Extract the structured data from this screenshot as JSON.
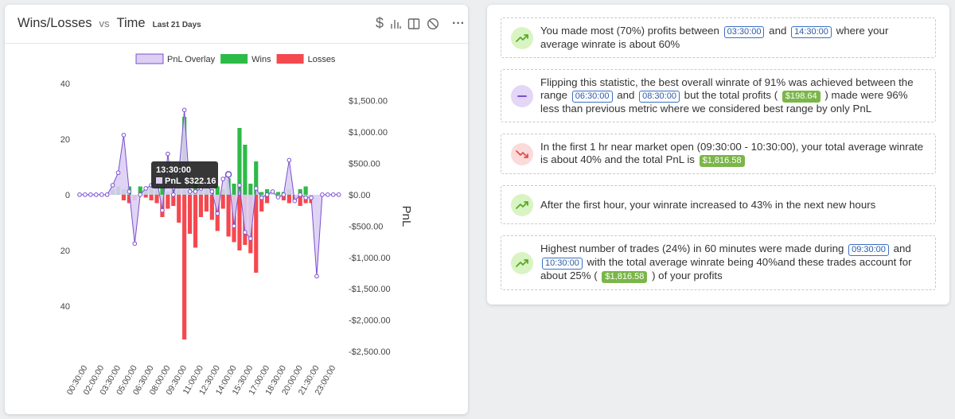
{
  "header": {
    "title": "Wins/Losses",
    "vs": "vs",
    "axis_title": "Time",
    "period": "Last 21 Days",
    "currency_icon": "$",
    "menu": "···"
  },
  "chart_data": {
    "type": "mixed",
    "categories": [
      null,
      "00:30:00",
      null,
      null,
      "02:00:00",
      null,
      null,
      "03:30:00",
      null,
      null,
      "05:00:00",
      null,
      null,
      "06:30:00",
      null,
      null,
      "08:00:00",
      null,
      null,
      "09:30:00",
      null,
      null,
      "11:00:00",
      null,
      null,
      "12:30:00",
      null,
      null,
      "14:00:00",
      null,
      null,
      "15:30:00",
      null,
      null,
      "17:00:00",
      null,
      null,
      "18:30:00",
      null,
      null,
      "20:00:00",
      null,
      null,
      "21:30:00",
      null,
      null,
      "23:00:00",
      null
    ],
    "series": [
      {
        "name": "PnL Overlay",
        "type": "area",
        "axis": "y2",
        "color": "#7b4fd0",
        "fill": "#dccff3",
        "values": [
          0,
          0,
          0,
          0,
          0,
          0,
          150,
          350,
          950,
          50,
          -780,
          0,
          100,
          150,
          250,
          -250,
          650,
          0,
          350,
          1350,
          50,
          50,
          100,
          150,
          50,
          -300,
          250,
          322.16,
          -500,
          150,
          -600,
          -700,
          100,
          -50,
          0,
          50,
          -40,
          0,
          550,
          -100,
          0,
          -50,
          -50,
          -1300,
          0,
          0,
          0,
          0
        ]
      },
      {
        "name": "Wins",
        "type": "bar",
        "color": "#2dbb47",
        "values": [
          0,
          0,
          0,
          0,
          0,
          0,
          2,
          3,
          2,
          3,
          0,
          3,
          2,
          3,
          3,
          3,
          1,
          2,
          3,
          28,
          2,
          5,
          2,
          3,
          2,
          3,
          2,
          6,
          4,
          24,
          18,
          4,
          12,
          1,
          2,
          0,
          1,
          1,
          2,
          0,
          2,
          3,
          0,
          0,
          0,
          0,
          0,
          0
        ]
      },
      {
        "name": "Losses",
        "type": "bar",
        "color": "#f5484f",
        "values": [
          0,
          0,
          0,
          0,
          0,
          0,
          0,
          0,
          -2,
          -3,
          -2,
          0,
          -1,
          -2,
          -3,
          -8,
          -5,
          -4,
          -10,
          -52,
          -14,
          -19,
          -8,
          -6,
          -9,
          -13,
          -5,
          -15,
          -17,
          -20,
          -18,
          -21,
          -28,
          -6,
          -3,
          0,
          -1,
          -2,
          -3,
          -2,
          -4,
          -3,
          -3,
          0,
          0,
          0,
          0,
          0
        ]
      }
    ],
    "ylim": [
      -57,
      43
    ],
    "yticks": [
      40,
      20,
      0,
      {
        "value": -20,
        "label": "20"
      },
      {
        "value": -40,
        "label": "40"
      }
    ],
    "y2lim": [
      -2530,
      1905
    ],
    "y2ticks": [
      {
        "value": 1500,
        "label": "$1,500.00"
      },
      {
        "value": 1000,
        "label": "$1,000.00"
      },
      {
        "value": 500,
        "label": "$500.00"
      },
      {
        "value": 0,
        "label": "$0.00"
      },
      {
        "value": -500,
        "label": "-$500.00"
      },
      {
        "value": -1000,
        "label": "-$1,000.00"
      },
      {
        "value": -1500,
        "label": "-$1,500.00"
      },
      {
        "value": -2000,
        "label": "-$2,000.00"
      },
      {
        "value": -2500,
        "label": "-$2,500.00"
      }
    ],
    "y2label": "PnL",
    "grid": false,
    "legend": "top",
    "tooltip": {
      "index": 27,
      "time": "13:30:00",
      "label": "PnL",
      "value": 322.16,
      "value_label": "$322.16"
    }
  },
  "insights": [
    {
      "icon": "up",
      "parts": [
        "You made most (70%) profits between",
        {
          "text": "03:30:00",
          "badge": "time"
        },
        "and",
        {
          "text": "14:30:00",
          "badge": "time"
        },
        "where your average winrate is about 60%"
      ]
    },
    {
      "icon": "flat",
      "parts": [
        "Flipping this statistic, the best overall winrate of 91% was achieved between the range",
        {
          "text": "06:30:00",
          "badge": "time"
        },
        "and",
        {
          "text": "08:30:00",
          "badge": "time"
        },
        "but the total profits (",
        {
          "text": "$198.64",
          "badge": "money"
        },
        ") made were 96% less than previous metric where we considered best range by only PnL"
      ]
    },
    {
      "icon": "down",
      "parts": [
        "In the first 1 hr near market open (09:30:00 - 10:30:00), your total average winrate is about 40% and the total PnL is",
        {
          "text": "$1,816.58",
          "badge": "money"
        }
      ]
    },
    {
      "icon": "up",
      "parts": [
        "After the first hour, your winrate increased to 43% in the next new hours"
      ]
    },
    {
      "icon": "up",
      "parts": [
        "Highest number of trades (24%) in 60 minutes were made during",
        {
          "text": "09:30:00",
          "badge": "time"
        },
        "and",
        {
          "text": "10:30:00",
          "badge": "time"
        },
        "with the total average winrate being 40%and these trades account for about 25% (",
        {
          "text": "$1,816.58",
          "badge": "money"
        },
        ") of your profits"
      ]
    }
  ]
}
